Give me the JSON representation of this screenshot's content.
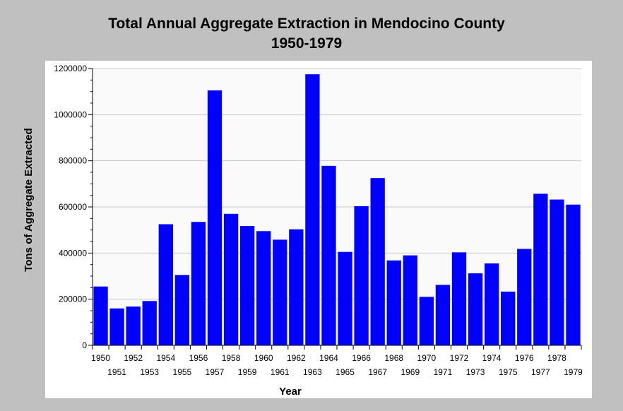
{
  "chart_data": {
    "type": "bar",
    "title": "Total Annual Aggregate Extraction in Mendocino County",
    "subtitle": "1950-1979",
    "xlabel": "Year",
    "ylabel": "Tons of Aggregate Extracted",
    "ylim": [
      0,
      1200000
    ],
    "yticks": [
      0,
      200000,
      400000,
      600000,
      800000,
      1000000,
      1200000
    ],
    "grid": true,
    "bar_color": "#0000ff",
    "categories": [
      "1950",
      "1951",
      "1952",
      "1953",
      "1954",
      "1955",
      "1956",
      "1957",
      "1958",
      "1959",
      "1960",
      "1961",
      "1962",
      "1963",
      "1964",
      "1965",
      "1966",
      "1967",
      "1968",
      "1969",
      "1970",
      "1971",
      "1972",
      "1973",
      "1974",
      "1975",
      "1976",
      "1977",
      "1978",
      "1979"
    ],
    "values": [
      255000,
      160000,
      168000,
      192000,
      525000,
      305000,
      535000,
      1105000,
      570000,
      517000,
      495000,
      458000,
      503000,
      1175000,
      778000,
      405000,
      603000,
      725000,
      368000,
      390000,
      210000,
      262000,
      403000,
      312000,
      355000,
      233000,
      418000,
      657000,
      632000,
      610000
    ]
  }
}
